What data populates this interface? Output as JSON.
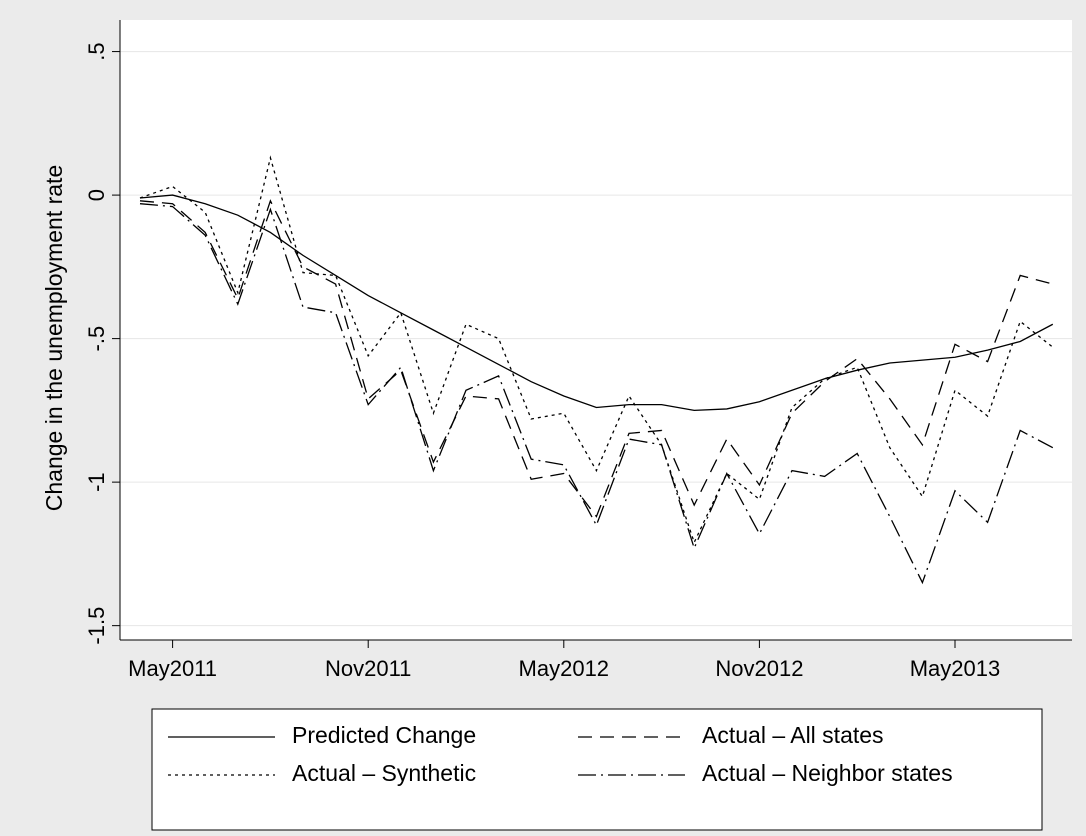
{
  "chart_data": {
    "type": "line",
    "y_label": "Change in the unemployment rate",
    "categories": [
      null,
      "May2011",
      null,
      null,
      null,
      null,
      null,
      "Nov2011",
      null,
      null,
      null,
      null,
      null,
      "May2012",
      null,
      null,
      null,
      null,
      null,
      "Nov2012",
      null,
      null,
      null,
      null,
      null,
      "May2013",
      null,
      null,
      null
    ],
    "ylim": [
      -1.55,
      0.61
    ],
    "yticks": [
      {
        "value": 0.5,
        "label": ".5"
      },
      0,
      {
        "value": -0.5,
        "label": "-.5"
      },
      -1,
      -1.5
    ],
    "grid": true,
    "series": [
      {
        "name": "Predicted Change",
        "color": "#000000",
        "dash": "solid",
        "values": [
          -0.01,
          0,
          -0.03,
          -0.07,
          -0.13,
          -0.21,
          -0.28,
          -0.35,
          -0.41,
          -0.47,
          -0.53,
          -0.59,
          -0.65,
          -0.7,
          -0.74,
          -0.73,
          -0.73,
          -0.75,
          -0.745,
          -0.72,
          -0.68,
          -0.64,
          -0.61,
          -0.585,
          -0.575,
          -0.565,
          -0.54,
          -0.51,
          -0.45
        ]
      },
      {
        "name": "Actual – All states",
        "color": "#000000",
        "dash": "dashed",
        "values": [
          -0.02,
          -0.03,
          -0.13,
          -0.36,
          -0.02,
          -0.25,
          -0.31,
          -0.71,
          -0.61,
          -0.93,
          -0.7,
          -0.71,
          -0.99,
          -0.97,
          -1.12,
          -0.83,
          -0.82,
          -1.08,
          -0.85,
          -1.01,
          -0.76,
          -0.65,
          -0.57,
          -0.71,
          -0.87,
          -0.52,
          -0.58,
          -0.28,
          -0.31
        ]
      },
      {
        "name": "Actual – Synthetic",
        "color": "#000000",
        "dash": "dotted",
        "values": [
          -0.01,
          0.03,
          -0.06,
          -0.34,
          0.13,
          -0.27,
          -0.28,
          -0.56,
          -0.41,
          -0.76,
          -0.45,
          -0.5,
          -0.78,
          -0.76,
          -0.96,
          -0.7,
          -0.87,
          -1.21,
          -0.97,
          -1.06,
          -0.74,
          -0.64,
          -0.6,
          -0.88,
          -1.05,
          -0.68,
          -0.77,
          -0.44,
          -0.53
        ]
      },
      {
        "name": "Actual – Neighbor states",
        "color": "#000000",
        "dash": "dashdot",
        "values": [
          -0.03,
          -0.04,
          -0.14,
          -0.38,
          -0.05,
          -0.39,
          -0.41,
          -0.73,
          -0.6,
          -0.96,
          -0.68,
          -0.63,
          -0.92,
          -0.94,
          -1.15,
          -0.85,
          -0.87,
          -1.23,
          -0.97,
          -1.18,
          -0.96,
          -0.98,
          -0.9,
          -1.12,
          -1.35,
          -1.03,
          -1.14,
          -0.82,
          -0.88
        ]
      }
    ]
  }
}
